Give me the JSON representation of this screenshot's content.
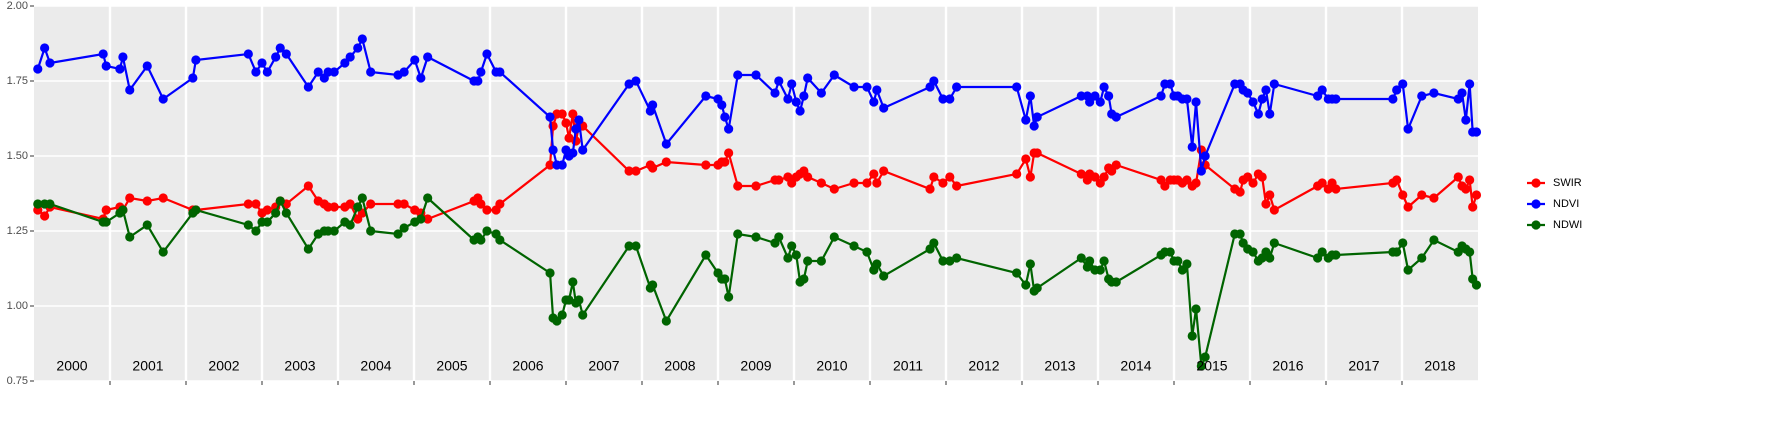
{
  "chart_data": {
    "type": "line",
    "x": [
      2000.05,
      2000.14,
      2000.21,
      2000.91,
      2000.95,
      2001.13,
      2001.17,
      2001.26,
      2001.49,
      2001.7,
      2002.09,
      2002.13,
      2002.82,
      2002.92,
      2003.0,
      2003.07,
      2003.18,
      2003.24,
      2003.32,
      2003.61,
      2003.74,
      2003.82,
      2003.87,
      2003.95,
      2004.09,
      2004.16,
      2004.26,
      2004.32,
      2004.43,
      2004.79,
      2004.87,
      2005.01,
      2005.09,
      2005.18,
      2005.79,
      2005.84,
      2005.88,
      2005.96,
      2006.08,
      2006.13,
      2006.79,
      2006.83,
      2006.88,
      2006.95,
      2007.0,
      2007.04,
      2007.09,
      2007.13,
      2007.17,
      2007.22,
      2007.83,
      2007.92,
      2008.11,
      2008.14,
      2008.32,
      2008.84,
      2009.0,
      2009.05,
      2009.09,
      2009.14,
      2009.26,
      2009.5,
      2009.75,
      2009.8,
      2009.92,
      2009.97,
      2010.03,
      2010.08,
      2010.13,
      2010.18,
      2010.36,
      2010.53,
      2010.79,
      2010.96,
      2011.05,
      2011.09,
      2011.18,
      2011.79,
      2011.84,
      2011.96,
      2012.05,
      2012.14,
      2012.93,
      2013.05,
      2013.11,
      2013.16,
      2013.2,
      2013.78,
      2013.86,
      2013.89,
      2013.96,
      2014.03,
      2014.08,
      2014.14,
      2014.18,
      2014.24,
      2014.83,
      2014.88,
      2014.95,
      2015.0,
      2015.05,
      2015.11,
      2015.17,
      2015.24,
      2015.29,
      2015.36,
      2015.41,
      2015.8,
      2015.87,
      2015.91,
      2015.97,
      2016.04,
      2016.11,
      2016.16,
      2016.21,
      2016.26,
      2016.32,
      2016.89,
      2016.95,
      2017.03,
      2017.08,
      2017.13,
      2017.88,
      2017.93,
      2018.01,
      2018.08,
      2018.26,
      2018.42,
      2018.74,
      2018.79,
      2018.84,
      2018.89,
      2018.93,
      2018.98
    ],
    "series": [
      {
        "name": "SWIR",
        "color": "#ff0000",
        "values": [
          1.32,
          1.3,
          1.33,
          1.29,
          1.32,
          1.33,
          1.32,
          1.36,
          1.35,
          1.36,
          1.32,
          1.32,
          1.34,
          1.34,
          1.31,
          1.32,
          1.33,
          1.35,
          1.34,
          1.4,
          1.35,
          1.34,
          1.33,
          1.33,
          1.33,
          1.34,
          1.29,
          1.31,
          1.34,
          1.34,
          1.34,
          1.32,
          1.31,
          1.29,
          1.35,
          1.36,
          1.34,
          1.32,
          1.32,
          1.34,
          1.47,
          1.6,
          1.64,
          1.64,
          1.61,
          1.56,
          1.64,
          1.55,
          1.6,
          1.6,
          1.45,
          1.45,
          1.47,
          1.46,
          1.48,
          1.47,
          1.47,
          1.48,
          1.48,
          1.51,
          1.4,
          1.4,
          1.42,
          1.42,
          1.43,
          1.41,
          1.43,
          1.44,
          1.45,
          1.43,
          1.41,
          1.39,
          1.41,
          1.41,
          1.44,
          1.41,
          1.45,
          1.39,
          1.43,
          1.41,
          1.43,
          1.4,
          1.44,
          1.49,
          1.43,
          1.51,
          1.51,
          1.44,
          1.42,
          1.44,
          1.43,
          1.41,
          1.43,
          1.46,
          1.45,
          1.47,
          1.42,
          1.4,
          1.42,
          1.42,
          1.42,
          1.41,
          1.42,
          1.4,
          1.41,
          1.52,
          1.47,
          1.39,
          1.38,
          1.42,
          1.43,
          1.41,
          1.44,
          1.43,
          1.34,
          1.37,
          1.32,
          1.4,
          1.41,
          1.39,
          1.41,
          1.39,
          1.41,
          1.42,
          1.37,
          1.33,
          1.37,
          1.36,
          1.43,
          1.4,
          1.39,
          1.42,
          1.33,
          1.37
        ]
      },
      {
        "name": "NDVI",
        "color": "#0000ff",
        "values": [
          1.79,
          1.86,
          1.81,
          1.84,
          1.8,
          1.79,
          1.83,
          1.72,
          1.8,
          1.69,
          1.76,
          1.82,
          1.84,
          1.78,
          1.81,
          1.78,
          1.83,
          1.86,
          1.84,
          1.73,
          1.78,
          1.76,
          1.78,
          1.78,
          1.81,
          1.83,
          1.86,
          1.89,
          1.78,
          1.77,
          1.78,
          1.82,
          1.76,
          1.83,
          1.75,
          1.75,
          1.78,
          1.84,
          1.78,
          1.78,
          1.63,
          1.52,
          1.47,
          1.47,
          1.52,
          1.5,
          1.51,
          1.59,
          1.62,
          1.52,
          1.74,
          1.75,
          1.65,
          1.67,
          1.54,
          1.7,
          1.69,
          1.67,
          1.63,
          1.59,
          1.77,
          1.77,
          1.71,
          1.75,
          1.69,
          1.74,
          1.68,
          1.65,
          1.7,
          1.76,
          1.71,
          1.77,
          1.73,
          1.73,
          1.68,
          1.72,
          1.66,
          1.73,
          1.75,
          1.69,
          1.69,
          1.73,
          1.73,
          1.62,
          1.7,
          1.6,
          1.63,
          1.7,
          1.7,
          1.68,
          1.7,
          1.68,
          1.73,
          1.7,
          1.64,
          1.63,
          1.7,
          1.74,
          1.74,
          1.7,
          1.7,
          1.69,
          1.69,
          1.53,
          1.68,
          1.45,
          1.5,
          1.74,
          1.74,
          1.72,
          1.71,
          1.68,
          1.64,
          1.69,
          1.72,
          1.64,
          1.74,
          1.7,
          1.72,
          1.69,
          1.69,
          1.69,
          1.69,
          1.72,
          1.74,
          1.59,
          1.7,
          1.71,
          1.69,
          1.71,
          1.62,
          1.74,
          1.58,
          1.58
        ]
      },
      {
        "name": "NDWI",
        "color": "#006400",
        "values": [
          1.34,
          1.34,
          1.34,
          1.28,
          1.28,
          1.31,
          1.32,
          1.23,
          1.27,
          1.18,
          1.31,
          1.32,
          1.27,
          1.25,
          1.28,
          1.28,
          1.31,
          1.35,
          1.31,
          1.19,
          1.24,
          1.25,
          1.25,
          1.25,
          1.28,
          1.27,
          1.33,
          1.36,
          1.25,
          1.24,
          1.26,
          1.28,
          1.29,
          1.36,
          1.22,
          1.23,
          1.22,
          1.25,
          1.24,
          1.22,
          1.11,
          0.96,
          0.95,
          0.97,
          1.02,
          1.02,
          1.08,
          1.01,
          1.02,
          0.97,
          1.2,
          1.2,
          1.06,
          1.07,
          0.95,
          1.17,
          1.11,
          1.09,
          1.09,
          1.03,
          1.24,
          1.23,
          1.21,
          1.23,
          1.16,
          1.2,
          1.17,
          1.08,
          1.09,
          1.15,
          1.15,
          1.23,
          1.2,
          1.18,
          1.12,
          1.14,
          1.1,
          1.19,
          1.21,
          1.15,
          1.15,
          1.16,
          1.11,
          1.07,
          1.14,
          1.05,
          1.06,
          1.16,
          1.13,
          1.15,
          1.12,
          1.12,
          1.15,
          1.09,
          1.08,
          1.08,
          1.17,
          1.18,
          1.18,
          1.15,
          1.15,
          1.12,
          1.14,
          0.9,
          0.99,
          0.8,
          0.83,
          1.24,
          1.24,
          1.21,
          1.19,
          1.18,
          1.15,
          1.16,
          1.18,
          1.16,
          1.21,
          1.16,
          1.18,
          1.16,
          1.17,
          1.17,
          1.18,
          1.18,
          1.21,
          1.12,
          1.16,
          1.22,
          1.18,
          1.2,
          1.19,
          1.18,
          1.09,
          1.07
        ]
      }
    ],
    "xlim": [
      2000,
      2019
    ],
    "xticks": [
      {
        "value": 2000.5,
        "label": "2000"
      },
      {
        "value": 2001.5,
        "label": "2001"
      },
      {
        "value": 2002.5,
        "label": "2002"
      },
      {
        "value": 2003.5,
        "label": "2003"
      },
      {
        "value": 2004.5,
        "label": "2004"
      },
      {
        "value": 2005.5,
        "label": "2005"
      },
      {
        "value": 2006.5,
        "label": "2006"
      },
      {
        "value": 2007.5,
        "label": "2007"
      },
      {
        "value": 2008.5,
        "label": "2008"
      },
      {
        "value": 2009.5,
        "label": "2009"
      },
      {
        "value": 2010.5,
        "label": "2010"
      },
      {
        "value": 2011.5,
        "label": "2011"
      },
      {
        "value": 2012.5,
        "label": "2012"
      },
      {
        "value": 2013.5,
        "label": "2013"
      },
      {
        "value": 2014.5,
        "label": "2014"
      },
      {
        "value": 2015.5,
        "label": "2015"
      },
      {
        "value": 2016.5,
        "label": "2016"
      },
      {
        "value": 2017.5,
        "label": "2017"
      },
      {
        "value": 2018.5,
        "label": "2018"
      }
    ],
    "x_breaks": [
      2001,
      2002,
      2003,
      2004,
      2005,
      2006,
      2007,
      2008,
      2009,
      2010,
      2011,
      2012,
      2013,
      2014,
      2015,
      2016,
      2017,
      2018
    ],
    "ylim": [
      0.75,
      2.0
    ],
    "yticks": [
      {
        "value": 0.75,
        "label": "0.75"
      },
      {
        "value": 1,
        "label": "1.00"
      },
      {
        "value": 1.25,
        "label": "1.25"
      },
      {
        "value": 1.5,
        "label": "1.50"
      },
      {
        "value": 1.75,
        "label": "1.75"
      },
      {
        "value": 2,
        "label": "2.00"
      }
    ],
    "grid": true,
    "legend": "right"
  }
}
